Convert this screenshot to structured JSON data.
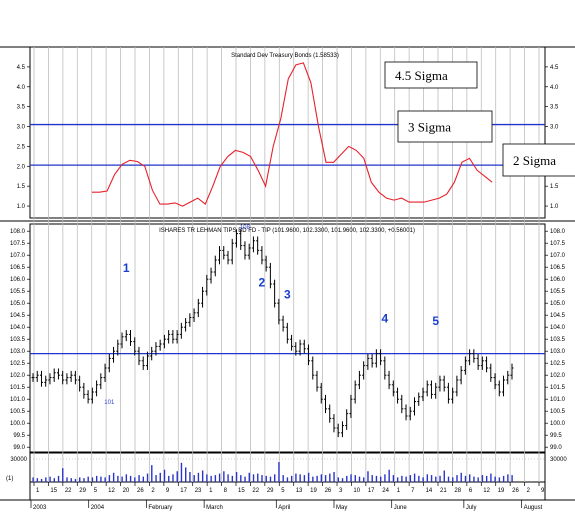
{
  "chart_data": [
    {
      "type": "line",
      "title": "Standard Dev Treasury Bonds (1.58533)",
      "ylim": [
        0.7,
        5.0
      ],
      "yticks": [
        "4.5",
        "4.0",
        "3.5",
        "3.0",
        "2.5",
        "2.0",
        "1.5",
        "1.0"
      ],
      "y_tick_values": [
        4.5,
        4.0,
        3.5,
        3.0,
        2.5,
        2.0,
        1.5,
        1.0
      ],
      "series": [
        {
          "color": "#e8212b",
          "x": [
            0,
            1,
            2,
            3,
            4,
            5,
            6,
            7,
            8,
            9,
            10,
            11,
            12,
            13,
            14,
            15,
            16,
            17,
            18,
            19,
            20,
            21,
            22,
            23,
            24,
            25,
            26,
            27,
            28,
            29,
            30,
            31,
            32,
            33,
            34,
            35,
            36,
            37,
            38,
            39,
            40,
            41,
            42,
            43,
            44,
            45,
            46,
            47,
            48,
            49,
            50,
            51,
            52,
            53,
            54,
            55,
            56,
            57,
            58,
            59,
            60
          ],
          "values": [
            1.35,
            1.35,
            1.38,
            1.8,
            2.05,
            2.15,
            2.12,
            2.0,
            1.4,
            1.05,
            1.05,
            1.08,
            1.0,
            1.1,
            1.2,
            1.05,
            1.5,
            2.0,
            2.25,
            2.4,
            2.35,
            2.25,
            1.9,
            1.5,
            2.5,
            3.2,
            4.2,
            4.55,
            4.6,
            4.1,
            3.0,
            2.1,
            2.1,
            2.3,
            2.5,
            2.4,
            2.2,
            1.6,
            1.35,
            1.2,
            1.15,
            1.2,
            1.1,
            1.1,
            1.1,
            1.15,
            1.2,
            1.3,
            1.6,
            2.1,
            2.2,
            1.9,
            1.75,
            1.6,
            1.6,
            1.6,
            1.6,
            1.6,
            1.6,
            1.6,
            1.6
          ],
          "visible_until": 53
        }
      ],
      "reference_lines": [
        {
          "value": 3.05,
          "label": "3 Sigma",
          "color": "#2233cc"
        },
        {
          "value": 2.03,
          "label": "2 Sigma",
          "color": "#2233cc"
        }
      ],
      "annotations": [
        {
          "text": "4.5 Sigma",
          "at_value": 4.45
        }
      ]
    },
    {
      "type": "ohlc",
      "title": "ISHARES TR LEHMAN TIPS BD FD - TIP (101.9600, 102.3300, 101.9600, 102.3300, +0.56001)",
      "ylim": [
        98.8,
        108.3
      ],
      "yticks": [
        "108.0",
        "107.5",
        "107.0",
        "106.5",
        "106.0",
        "105.5",
        "105.0",
        "104.5",
        "104.0",
        "103.5",
        "103.0",
        "102.5",
        "102.0",
        "101.5",
        "101.0",
        "100.5",
        "100.0",
        "99.5",
        "99.0"
      ],
      "y_tick_values": [
        108.0,
        107.5,
        107.0,
        106.5,
        106.0,
        105.5,
        105.0,
        104.5,
        104.0,
        103.5,
        103.0,
        102.5,
        102.0,
        101.5,
        101.0,
        100.5,
        100.0,
        99.5,
        99.0
      ],
      "closes": [
        101.9,
        102.0,
        101.7,
        101.8,
        101.9,
        102.1,
        102.0,
        101.8,
        101.9,
        102.0,
        101.8,
        101.5,
        101.2,
        101.0,
        101.3,
        101.6,
        101.9,
        102.3,
        102.7,
        103.0,
        103.3,
        103.6,
        103.7,
        103.4,
        103.0,
        102.6,
        102.4,
        102.8,
        103.0,
        103.2,
        103.3,
        103.5,
        103.7,
        103.5,
        103.7,
        104.0,
        104.2,
        104.4,
        104.6,
        105.0,
        105.5,
        106.0,
        106.3,
        106.8,
        107.2,
        107.0,
        106.8,
        107.5,
        107.9,
        107.4,
        107.0,
        107.3,
        107.6,
        107.2,
        106.8,
        106.5,
        105.8,
        105.0,
        104.3,
        104.0,
        103.5,
        103.2,
        103.0,
        103.3,
        103.1,
        102.6,
        102.0,
        101.5,
        101.0,
        100.6,
        100.2,
        99.8,
        99.6,
        99.9,
        100.4,
        101.0,
        101.6,
        102.0,
        102.4,
        102.7,
        102.5,
        102.9,
        102.6,
        102.0,
        101.6,
        101.3,
        101.0,
        100.6,
        100.3,
        100.5,
        100.9,
        101.1,
        101.3,
        101.6,
        101.2,
        101.5,
        101.8,
        101.5,
        101.0,
        101.3,
        101.8,
        102.2,
        102.6,
        102.9,
        102.7,
        102.4,
        102.6,
        102.3,
        101.9,
        101.6,
        101.3,
        101.8,
        102.0,
        102.3
      ],
      "reference_line": 102.9,
      "wave_labels": [
        {
          "text": "1",
          "index": 22,
          "at": 106.3
        },
        {
          "text": "2",
          "index": 54,
          "at": 105.7
        },
        {
          "text": "3",
          "index": 60,
          "at": 105.2
        },
        {
          "text": "4",
          "index": 83,
          "at": 104.2
        },
        {
          "text": "5",
          "index": 95,
          "at": 104.1
        }
      ],
      "point_labels": [
        {
          "text": "101",
          "index": 18,
          "at": 100.8
        },
        {
          "text": "108",
          "index": 50,
          "at": 108.1
        }
      ]
    },
    {
      "type": "bar",
      "title": "",
      "ytick_top": "30000",
      "ytick_top_value": 30000,
      "corner_label": "(1)",
      "volumes": [
        6,
        5,
        4,
        6,
        7,
        5,
        8,
        18,
        6,
        5,
        4,
        6,
        5,
        7,
        6,
        8,
        7,
        6,
        9,
        12,
        8,
        7,
        10,
        8,
        6,
        9,
        7,
        11,
        22,
        9,
        12,
        16,
        8,
        10,
        14,
        25,
        19,
        13,
        9,
        12,
        15,
        10,
        8,
        9,
        11,
        14,
        10,
        8,
        13,
        9,
        7,
        12,
        10,
        11,
        9,
        8,
        7,
        10,
        26,
        9,
        6,
        8,
        11,
        10,
        9,
        12,
        7,
        8,
        10,
        9,
        11,
        13,
        6,
        5,
        8,
        10,
        9,
        7,
        6,
        14,
        9,
        8,
        7,
        10,
        16,
        9,
        6,
        8,
        7,
        9,
        11,
        8,
        6,
        10,
        9,
        7,
        8,
        15,
        7,
        6,
        9,
        12,
        8,
        10,
        7,
        6,
        9,
        8,
        11,
        7,
        6,
        8,
        10,
        9
      ]
    }
  ],
  "x_axis": {
    "days": [
      "1",
      "15",
      "22",
      "29",
      "5",
      "12",
      "20",
      "26",
      "2",
      "9",
      "17",
      "23",
      "1",
      "8",
      "15",
      "22",
      "29",
      "5",
      "13",
      "19",
      "26",
      "3",
      "10",
      "17",
      "24",
      "1",
      "7",
      "14",
      "21",
      "28",
      "6",
      "12",
      "19",
      "26",
      "2",
      "9"
    ],
    "months": [
      "2003",
      "2004",
      "February",
      "March",
      "April",
      "May",
      "June",
      "July",
      "August"
    ],
    "month_at_day": [
      0,
      4,
      8,
      12,
      17,
      21,
      25,
      30,
      34
    ]
  }
}
